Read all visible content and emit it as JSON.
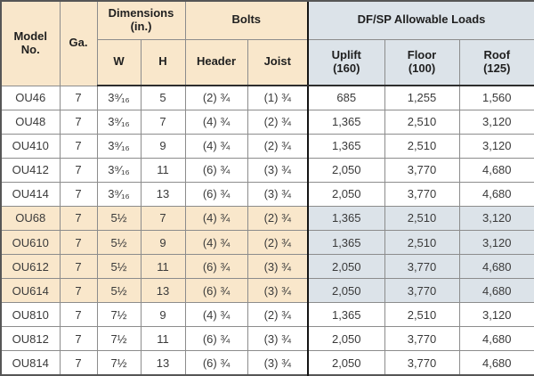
{
  "table": {
    "header": {
      "model": "Model\nNo.",
      "ga": "Ga.",
      "dimensions_group": "Dimensions\n(in.)",
      "w": "W",
      "h": "H",
      "bolts_group": "Bolts",
      "bolt_header": "Header",
      "bolt_joist": "Joist",
      "loads_group": "DF/SP Allowable Loads",
      "uplift": "Uplift\n(160)",
      "floor": "Floor\n(100)",
      "roof": "Roof\n(125)"
    },
    "rows": [
      {
        "model": "OU46",
        "ga": "7",
        "w": "3⁹⁄₁₆",
        "h": "5",
        "header_bolts": "(2) ¾",
        "joist_bolts": "(1) ¾",
        "uplift": "685",
        "floor": "1,255",
        "roof": "1,560",
        "highlight": false
      },
      {
        "model": "OU48",
        "ga": "7",
        "w": "3⁹⁄₁₆",
        "h": "7",
        "header_bolts": "(4) ¾",
        "joist_bolts": "(2) ¾",
        "uplift": "1,365",
        "floor": "2,510",
        "roof": "3,120",
        "highlight": false
      },
      {
        "model": "OU410",
        "ga": "7",
        "w": "3⁹⁄₁₆",
        "h": "9",
        "header_bolts": "(4) ¾",
        "joist_bolts": "(2) ¾",
        "uplift": "1,365",
        "floor": "2,510",
        "roof": "3,120",
        "highlight": false
      },
      {
        "model": "OU412",
        "ga": "7",
        "w": "3⁹⁄₁₆",
        "h": "11",
        "header_bolts": "(6) ¾",
        "joist_bolts": "(3) ¾",
        "uplift": "2,050",
        "floor": "3,770",
        "roof": "4,680",
        "highlight": false
      },
      {
        "model": "OU414",
        "ga": "7",
        "w": "3⁹⁄₁₆",
        "h": "13",
        "header_bolts": "(6) ¾",
        "joist_bolts": "(3) ¾",
        "uplift": "2,050",
        "floor": "3,770",
        "roof": "4,680",
        "highlight": false
      },
      {
        "model": "OU68",
        "ga": "7",
        "w": "5½",
        "h": "7",
        "header_bolts": "(4) ¾",
        "joist_bolts": "(2) ¾",
        "uplift": "1,365",
        "floor": "2,510",
        "roof": "3,120",
        "highlight": true
      },
      {
        "model": "OU610",
        "ga": "7",
        "w": "5½",
        "h": "9",
        "header_bolts": "(4) ¾",
        "joist_bolts": "(2) ¾",
        "uplift": "1,365",
        "floor": "2,510",
        "roof": "3,120",
        "highlight": true
      },
      {
        "model": "OU612",
        "ga": "7",
        "w": "5½",
        "h": "11",
        "header_bolts": "(6) ¾",
        "joist_bolts": "(3) ¾",
        "uplift": "2,050",
        "floor": "3,770",
        "roof": "4,680",
        "highlight": true
      },
      {
        "model": "OU614",
        "ga": "7",
        "w": "5½",
        "h": "13",
        "header_bolts": "(6) ¾",
        "joist_bolts": "(3) ¾",
        "uplift": "2,050",
        "floor": "3,770",
        "roof": "4,680",
        "highlight": true
      },
      {
        "model": "OU810",
        "ga": "7",
        "w": "7½",
        "h": "9",
        "header_bolts": "(4) ¾",
        "joist_bolts": "(2) ¾",
        "uplift": "1,365",
        "floor": "2,510",
        "roof": "3,120",
        "highlight": false
      },
      {
        "model": "OU812",
        "ga": "7",
        "w": "7½",
        "h": "11",
        "header_bolts": "(6) ¾",
        "joist_bolts": "(3) ¾",
        "uplift": "2,050",
        "floor": "3,770",
        "roof": "4,680",
        "highlight": false
      },
      {
        "model": "OU814",
        "ga": "7",
        "w": "7½",
        "h": "13",
        "header_bolts": "(6) ¾",
        "joist_bolts": "(3) ¾",
        "uplift": "2,050",
        "floor": "3,770",
        "roof": "4,680",
        "highlight": false
      }
    ],
    "colors": {
      "left_section_bg": "#f9e7cb",
      "right_section_bg": "#dce3e9",
      "grid_line": "#8c8c8c",
      "section_divider": "#141414",
      "text": "#3a3a3a"
    }
  }
}
